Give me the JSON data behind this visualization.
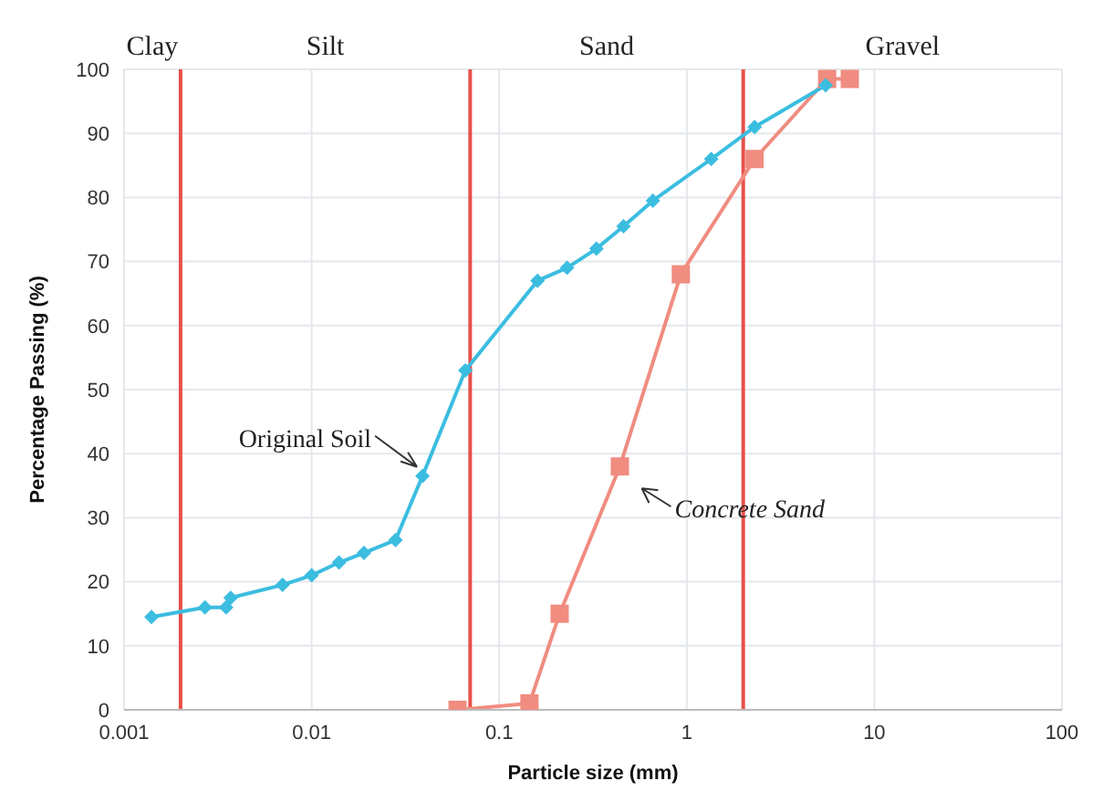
{
  "chart_data": {
    "type": "line",
    "xlabel": "Particle size (mm)",
    "ylabel": "Percentage Passing (%)",
    "log": "x",
    "xlim": [
      0.001,
      100
    ],
    "xticks": [
      0.001,
      0.01,
      0.1,
      1,
      10,
      100
    ],
    "ylim": [
      0,
      100
    ],
    "yticks": [
      0,
      10,
      20,
      30,
      40,
      50,
      60,
      70,
      80,
      90,
      100
    ],
    "grid": true,
    "legend": false,
    "series": [
      {
        "color": "#3bbde0",
        "marker": "diamond",
        "x": [
          0.0014,
          0.0027,
          0.0035,
          0.0037,
          0.007,
          0.01,
          0.014,
          0.019,
          0.028,
          0.039,
          0.066,
          0.16,
          0.23,
          0.33,
          0.46,
          0.66,
          1.35,
          2.3,
          5.5
        ],
        "values": [
          14.5,
          16,
          16,
          17.5,
          19.5,
          21,
          23,
          24.5,
          26.5,
          36.5,
          53,
          67,
          69,
          72,
          75.5,
          79.5,
          86,
          91,
          97.5
        ]
      },
      {
        "color": "#f08c80",
        "marker": "square",
        "x": [
          0.06,
          0.145,
          0.21,
          0.44,
          0.93,
          2.3,
          5.6,
          7.4
        ],
        "values": [
          0,
          1,
          15,
          38,
          68,
          86,
          98.5,
          98.5
        ]
      }
    ],
    "ref_lines": [
      {
        "axis": "x",
        "value": 0.002,
        "color": "#e8504a"
      },
      {
        "axis": "x",
        "value": 0.07,
        "color": "#e8504a"
      },
      {
        "axis": "x",
        "value": 2,
        "color": "#e8504a"
      }
    ],
    "annotations": [
      "Clay",
      "Silt",
      "Sand",
      "Gravel",
      {
        "text": "Original Soil",
        "x": 0.039,
        "y": 36.5
      },
      {
        "text": "Concrete Sand",
        "x": 0.44,
        "y": 38
      }
    ]
  }
}
